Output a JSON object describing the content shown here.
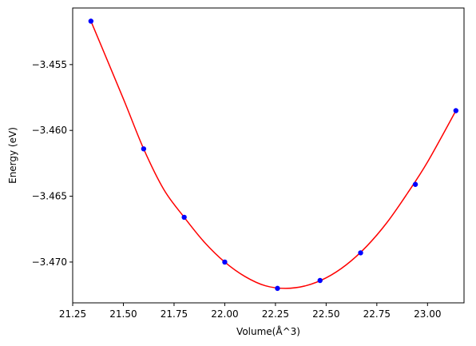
{
  "chart_data": {
    "type": "scatter",
    "title": "",
    "xlabel": "Volume(Å^3)",
    "ylabel": "Energy (eV)",
    "xlim": [
      21.25,
      23.18
    ],
    "ylim": [
      -3.4731,
      -3.4507
    ],
    "xticks": [
      21.25,
      21.5,
      21.75,
      22.0,
      22.25,
      22.5,
      22.75,
      23.0
    ],
    "xtick_labels": [
      "21.25",
      "21.50",
      "21.75",
      "22.00",
      "22.25",
      "22.50",
      "22.75",
      "23.00"
    ],
    "yticks": [
      -3.455,
      -3.46,
      -3.465,
      -3.47
    ],
    "ytick_labels": [
      "−3.455",
      "−3.460",
      "−3.465",
      "−3.470"
    ],
    "grid": false,
    "series": [
      {
        "kind": "points",
        "color": "#0000ff",
        "x": [
          21.34,
          21.6,
          21.8,
          22.0,
          22.26,
          22.47,
          22.67,
          22.94,
          23.14
        ],
        "y": [
          -3.4517,
          -3.4614,
          -3.4666,
          -3.47,
          -3.472,
          -3.4714,
          -3.4693,
          -3.4641,
          -3.4585
        ]
      },
      {
        "kind": "fit-curve",
        "color": "#ff0000",
        "x": [
          21.34,
          21.5,
          21.6,
          21.7,
          21.8,
          21.9,
          22.0,
          22.1,
          22.2,
          22.3,
          22.4,
          22.5,
          22.6,
          22.7,
          22.8,
          22.9,
          23.0,
          23.14
        ],
        "y": [
          -3.4517,
          -3.4576,
          -3.4614,
          -3.4645,
          -3.4666,
          -3.4685,
          -3.47,
          -3.4711,
          -3.4718,
          -3.472,
          -3.4718,
          -3.4712,
          -3.4702,
          -3.4688,
          -3.467,
          -3.4648,
          -3.4624,
          -3.4585
        ]
      }
    ]
  }
}
